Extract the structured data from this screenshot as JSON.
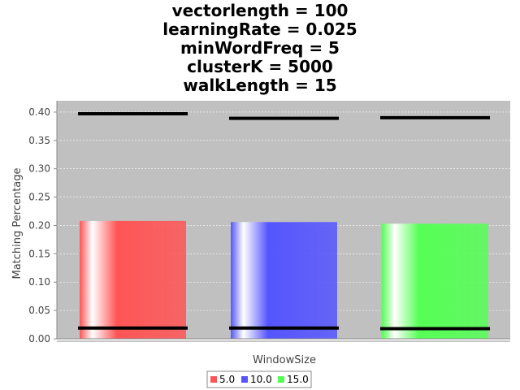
{
  "chart_data": {
    "type": "bar",
    "title_lines": [
      "vectorlength = 100",
      "learningRate = 0.025",
      "minWordFreq = 5",
      "clusterK = 5000",
      "walkLength = 15"
    ],
    "xlabel": "WindowSize",
    "ylabel": "Matching Percentage",
    "ylim": [
      0,
      0.42
    ],
    "yticks": [
      "0.00",
      "0.05",
      "0.10",
      "0.15",
      "0.20",
      "0.25",
      "0.30",
      "0.35",
      "0.40"
    ],
    "ytick_values": [
      0,
      0.05,
      0.1,
      0.15,
      0.2,
      0.25,
      0.3,
      0.35,
      0.4
    ],
    "grid": true,
    "legend_position": "bottom",
    "plot_background": "#c0c0c0",
    "series": [
      {
        "name": "5.0",
        "value": 0.208,
        "error_high": 0.397,
        "error_low": 0.019,
        "color": "#ff5555"
      },
      {
        "name": "10.0",
        "value": 0.206,
        "error_high": 0.389,
        "error_low": 0.019,
        "color": "#5555ff"
      },
      {
        "name": "15.0",
        "value": 0.203,
        "error_high": 0.39,
        "error_low": 0.018,
        "color": "#55ff55"
      }
    ]
  }
}
